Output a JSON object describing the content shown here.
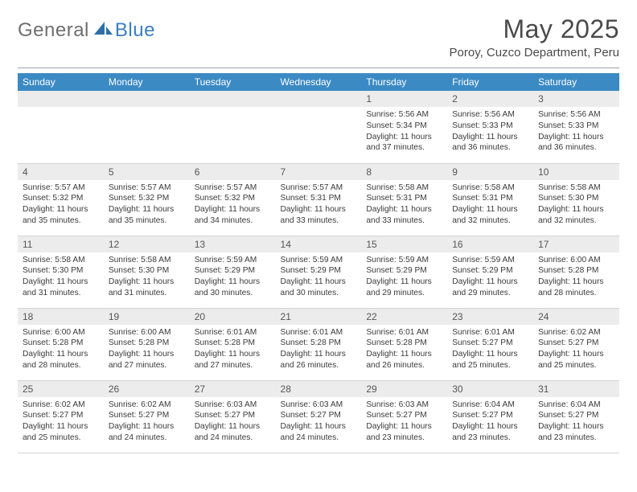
{
  "logo": {
    "text1": "General",
    "text2": "Blue"
  },
  "title": "May 2025",
  "subtitle": "Poroy, Cuzco Department, Peru",
  "day_headers": [
    "Sunday",
    "Monday",
    "Tuesday",
    "Wednesday",
    "Thursday",
    "Friday",
    "Saturday"
  ],
  "colors": {
    "header_bg": "#3b8ac4",
    "header_text": "#ffffff",
    "daynum_bg": "#ececec",
    "text": "#3a3a3a",
    "logo_gray": "#6e6e6e",
    "logo_blue": "#3a7fc0",
    "rule": "#9aa0a6"
  },
  "labels": {
    "sunrise": "Sunrise:",
    "sunset": "Sunset:",
    "daylight": "Daylight:"
  },
  "weeks": [
    [
      null,
      null,
      null,
      null,
      {
        "n": "1",
        "sr": "5:56 AM",
        "ss": "5:34 PM",
        "dl": "11 hours and 37 minutes."
      },
      {
        "n": "2",
        "sr": "5:56 AM",
        "ss": "5:33 PM",
        "dl": "11 hours and 36 minutes."
      },
      {
        "n": "3",
        "sr": "5:56 AM",
        "ss": "5:33 PM",
        "dl": "11 hours and 36 minutes."
      }
    ],
    [
      {
        "n": "4",
        "sr": "5:57 AM",
        "ss": "5:32 PM",
        "dl": "11 hours and 35 minutes."
      },
      {
        "n": "5",
        "sr": "5:57 AM",
        "ss": "5:32 PM",
        "dl": "11 hours and 35 minutes."
      },
      {
        "n": "6",
        "sr": "5:57 AM",
        "ss": "5:32 PM",
        "dl": "11 hours and 34 minutes."
      },
      {
        "n": "7",
        "sr": "5:57 AM",
        "ss": "5:31 PM",
        "dl": "11 hours and 33 minutes."
      },
      {
        "n": "8",
        "sr": "5:58 AM",
        "ss": "5:31 PM",
        "dl": "11 hours and 33 minutes."
      },
      {
        "n": "9",
        "sr": "5:58 AM",
        "ss": "5:31 PM",
        "dl": "11 hours and 32 minutes."
      },
      {
        "n": "10",
        "sr": "5:58 AM",
        "ss": "5:30 PM",
        "dl": "11 hours and 32 minutes."
      }
    ],
    [
      {
        "n": "11",
        "sr": "5:58 AM",
        "ss": "5:30 PM",
        "dl": "11 hours and 31 minutes."
      },
      {
        "n": "12",
        "sr": "5:58 AM",
        "ss": "5:30 PM",
        "dl": "11 hours and 31 minutes."
      },
      {
        "n": "13",
        "sr": "5:59 AM",
        "ss": "5:29 PM",
        "dl": "11 hours and 30 minutes."
      },
      {
        "n": "14",
        "sr": "5:59 AM",
        "ss": "5:29 PM",
        "dl": "11 hours and 30 minutes."
      },
      {
        "n": "15",
        "sr": "5:59 AM",
        "ss": "5:29 PM",
        "dl": "11 hours and 29 minutes."
      },
      {
        "n": "16",
        "sr": "5:59 AM",
        "ss": "5:29 PM",
        "dl": "11 hours and 29 minutes."
      },
      {
        "n": "17",
        "sr": "6:00 AM",
        "ss": "5:28 PM",
        "dl": "11 hours and 28 minutes."
      }
    ],
    [
      {
        "n": "18",
        "sr": "6:00 AM",
        "ss": "5:28 PM",
        "dl": "11 hours and 28 minutes."
      },
      {
        "n": "19",
        "sr": "6:00 AM",
        "ss": "5:28 PM",
        "dl": "11 hours and 27 minutes."
      },
      {
        "n": "20",
        "sr": "6:01 AM",
        "ss": "5:28 PM",
        "dl": "11 hours and 27 minutes."
      },
      {
        "n": "21",
        "sr": "6:01 AM",
        "ss": "5:28 PM",
        "dl": "11 hours and 26 minutes."
      },
      {
        "n": "22",
        "sr": "6:01 AM",
        "ss": "5:28 PM",
        "dl": "11 hours and 26 minutes."
      },
      {
        "n": "23",
        "sr": "6:01 AM",
        "ss": "5:27 PM",
        "dl": "11 hours and 25 minutes."
      },
      {
        "n": "24",
        "sr": "6:02 AM",
        "ss": "5:27 PM",
        "dl": "11 hours and 25 minutes."
      }
    ],
    [
      {
        "n": "25",
        "sr": "6:02 AM",
        "ss": "5:27 PM",
        "dl": "11 hours and 25 minutes."
      },
      {
        "n": "26",
        "sr": "6:02 AM",
        "ss": "5:27 PM",
        "dl": "11 hours and 24 minutes."
      },
      {
        "n": "27",
        "sr": "6:03 AM",
        "ss": "5:27 PM",
        "dl": "11 hours and 24 minutes."
      },
      {
        "n": "28",
        "sr": "6:03 AM",
        "ss": "5:27 PM",
        "dl": "11 hours and 24 minutes."
      },
      {
        "n": "29",
        "sr": "6:03 AM",
        "ss": "5:27 PM",
        "dl": "11 hours and 23 minutes."
      },
      {
        "n": "30",
        "sr": "6:04 AM",
        "ss": "5:27 PM",
        "dl": "11 hours and 23 minutes."
      },
      {
        "n": "31",
        "sr": "6:04 AM",
        "ss": "5:27 PM",
        "dl": "11 hours and 23 minutes."
      }
    ]
  ]
}
